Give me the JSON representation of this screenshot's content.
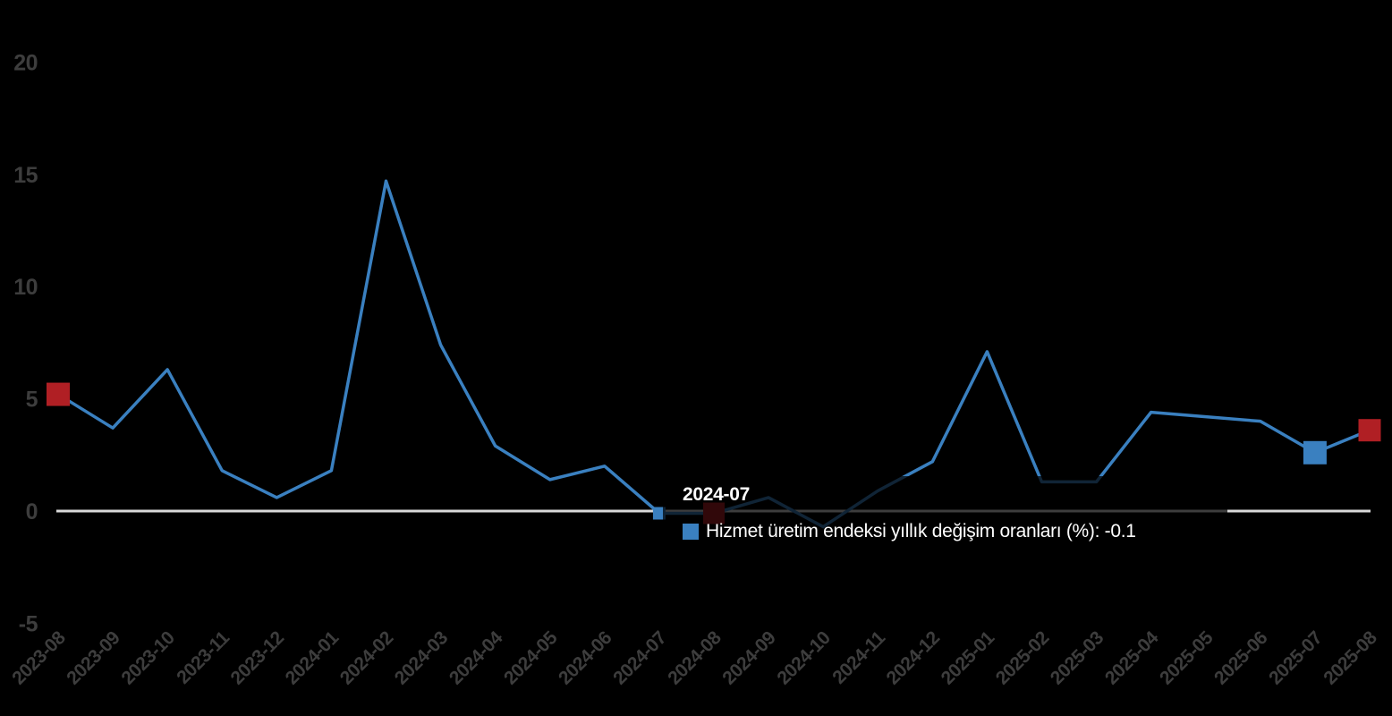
{
  "background": "#000000",
  "chart_data": {
    "type": "line",
    "title": "",
    "series_name": "Hizmet üretim endeksi yıllık değişim oranları (%)",
    "categories": [
      "2023-08",
      "2023-09",
      "2023-10",
      "2023-11",
      "2023-12",
      "2024-01",
      "2024-02",
      "2024-03",
      "2024-04",
      "2024-05",
      "2024-06",
      "2024-07",
      "2024-08",
      "2024-09",
      "2024-10",
      "2024-11",
      "2024-12",
      "2025-01",
      "2025-02",
      "2025-03",
      "2025-04",
      "2025-05",
      "2025-06",
      "2025-07",
      "2025-08"
    ],
    "values": [
      5.2,
      3.7,
      6.3,
      1.8,
      0.6,
      1.8,
      14.7,
      7.4,
      2.9,
      1.4,
      2.0,
      -0.1,
      -0.1,
      0.6,
      -0.7,
      0.9,
      2.2,
      7.1,
      1.3,
      1.3,
      4.4,
      4.2,
      4.0,
      2.6,
      3.6
    ],
    "xlabel": "",
    "ylabel": "",
    "ylim": [
      -5,
      20
    ],
    "y_ticks": [
      20,
      15,
      10,
      5,
      0,
      -5
    ],
    "grid": false,
    "legend_position": "none",
    "colors": {
      "line": "#3a80c0",
      "blue_marker": "#3a80c0",
      "red_marker": "#b01f24",
      "axis_line": "#d9d9d9",
      "tick_label": "#3d3d3d"
    },
    "markers": [
      {
        "category": "2023-08",
        "index": 0,
        "value": 5.2,
        "color": "#b01f24",
        "size": 26,
        "name": "marker-2023-08"
      },
      {
        "category": "2024-07",
        "index": 11,
        "value": -0.1,
        "color": "#3a80c0",
        "size": 14,
        "name": "marker-hovered-2024-07"
      },
      {
        "category": "2024-08",
        "index": 12,
        "value": -0.1,
        "color": "#b01f24",
        "size": 24,
        "name": "marker-2024-08"
      },
      {
        "category": "2025-07",
        "index": 23,
        "value": 2.6,
        "color": "#3a80c0",
        "size": 26,
        "name": "marker-2025-07"
      },
      {
        "category": "2025-08",
        "index": 24,
        "value": 3.6,
        "color": "#b01f24",
        "size": 25,
        "name": "marker-2025-08"
      }
    ]
  },
  "tooltip": {
    "title": "2024-07",
    "series_label": "Hizmet üretim endeksi yıllık değişim oranları (%)",
    "value": "-0.1",
    "text": "Hizmet üretim endeksi yıllık değişim oranları (%): -0.1",
    "background": "rgba(0,0,0,0.72)",
    "text_color": "#ffffff",
    "icon_color": "#3a80c0"
  }
}
